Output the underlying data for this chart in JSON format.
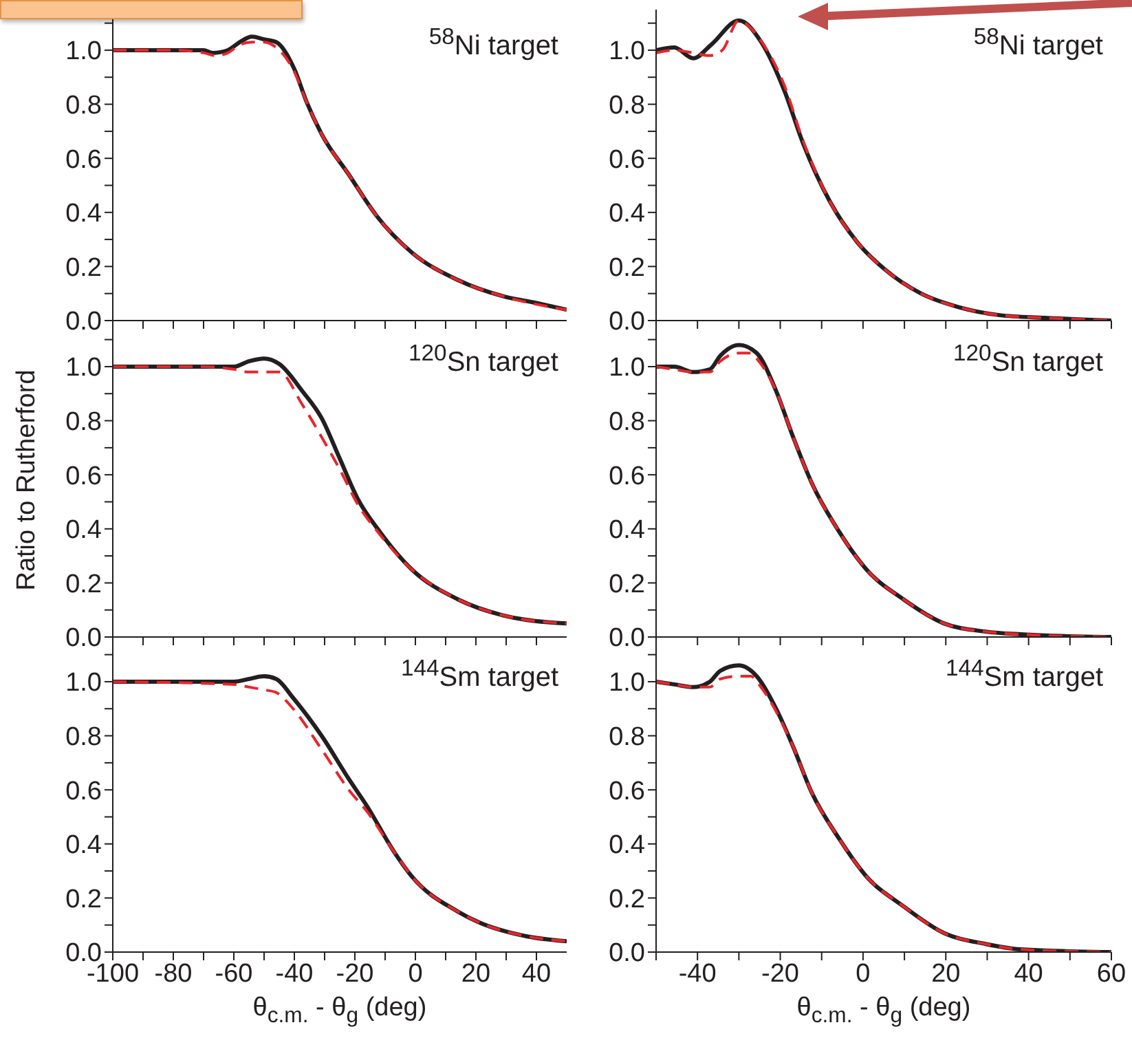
{
  "chart_data": [
    {
      "type": "line",
      "annotations": [
        "$^{58}$Ni target"
      ],
      "xlim": [
        -100,
        50
      ],
      "xticks": [
        -100,
        {
          "value": -90,
          "label": null
        },
        -80,
        {
          "value": -70,
          "label": null
        },
        -60,
        {
          "value": -50,
          "label": null
        },
        -40,
        {
          "value": -30,
          "label": null
        },
        -20,
        {
          "value": -10,
          "label": null
        },
        0,
        {
          "value": 10,
          "label": null
        },
        20,
        {
          "value": 30,
          "label": null
        },
        40
      ],
      "ylim": [
        0,
        1.15
      ],
      "yticks": [
        {
          "value": 0,
          "label": "0.0"
        },
        {
          "value": 0.1,
          "label": null
        },
        {
          "value": 0.2,
          "label": "0.2"
        },
        {
          "value": 0.3,
          "label": null
        },
        {
          "value": 0.4,
          "label": "0.4"
        },
        {
          "value": 0.5,
          "label": null
        },
        {
          "value": 0.6,
          "label": "0.6"
        },
        {
          "value": 0.7,
          "label": null
        },
        {
          "value": 0.8,
          "label": "0.8"
        },
        {
          "value": 0.9,
          "label": null
        },
        {
          "value": 1,
          "label": "1.0"
        },
        {
          "value": 1.1,
          "label": null
        }
      ],
      "tick_labels": "y",
      "series": [
        {
          "color": "#231f20",
          "line_style": "solid",
          "x": [
            -100,
            -80,
            -70,
            -67,
            -62,
            -58,
            -54,
            -50,
            -46,
            -40,
            -36,
            -31,
            -22,
            -13,
            -1,
            14,
            29,
            40,
            50
          ],
          "values": [
            1.0,
            1.0,
            1.0,
            0.99,
            1.0,
            1.03,
            1.05,
            1.04,
            1.03,
            0.93,
            0.81,
            0.69,
            0.54,
            0.39,
            0.25,
            0.15,
            0.09,
            0.065,
            0.04
          ]
        },
        {
          "color": "#e8262b",
          "line_style": "dashed",
          "x": [
            -100,
            -80,
            -70,
            -66,
            -62,
            -58,
            -54,
            -50,
            -46,
            -40,
            -36,
            -31,
            -22,
            -13,
            -1,
            14,
            29,
            40,
            50
          ],
          "values": [
            1.0,
            1.0,
            0.99,
            0.98,
            0.99,
            1.02,
            1.03,
            1.03,
            1.01,
            0.92,
            0.81,
            0.69,
            0.54,
            0.39,
            0.25,
            0.15,
            0.09,
            0.06,
            0.04
          ]
        }
      ]
    },
    {
      "type": "line",
      "annotations": [
        "$^{58}$Ni target"
      ],
      "xlim": [
        -50,
        60
      ],
      "xticks": [
        {
          "value": -50,
          "label": null
        },
        -40,
        {
          "value": -30,
          "label": null
        },
        -20,
        {
          "value": -10,
          "label": null
        },
        0,
        {
          "value": 10,
          "label": null
        },
        20,
        {
          "value": 30,
          "label": null
        },
        40,
        {
          "value": 50,
          "label": null
        },
        60
      ],
      "ylim": [
        0,
        1.15
      ],
      "yticks": [
        {
          "value": 0,
          "label": "0.0"
        },
        {
          "value": 0.1,
          "label": null
        },
        {
          "value": 0.2,
          "label": "0.2"
        },
        {
          "value": 0.3,
          "label": null
        },
        {
          "value": 0.4,
          "label": "0.4"
        },
        {
          "value": 0.5,
          "label": null
        },
        {
          "value": 0.6,
          "label": "0.6"
        },
        {
          "value": 0.7,
          "label": null
        },
        {
          "value": 0.8,
          "label": "0.8"
        },
        {
          "value": 0.9,
          "label": null
        },
        {
          "value": 1,
          "label": "1.0"
        },
        {
          "value": 1.1,
          "label": null
        }
      ],
      "tick_labels": "y",
      "series": [
        {
          "color": "#231f20",
          "line_style": "solid",
          "x": [
            -50,
            -45.6,
            -41,
            -36.7,
            -30,
            -24.6,
            -19,
            -14.6,
            -8,
            -1.4,
            5.2,
            14,
            23,
            33,
            44,
            60
          ],
          "values": [
            1.0,
            1.01,
            0.97,
            1.02,
            1.11,
            1.03,
            0.85,
            0.66,
            0.44,
            0.29,
            0.19,
            0.1,
            0.05,
            0.02,
            0.01,
            0.0
          ]
        },
        {
          "color": "#e8262b",
          "line_style": "dashed",
          "x": [
            -50,
            -45.6,
            -41,
            -37,
            -34,
            -30,
            -27,
            -24,
            -19,
            -14.6,
            -8,
            -1.4,
            5.2,
            14,
            23,
            33,
            44,
            60
          ],
          "values": [
            0.99,
            1.0,
            0.99,
            0.98,
            1.0,
            1.11,
            1.08,
            1.02,
            0.87,
            0.67,
            0.44,
            0.29,
            0.19,
            0.1,
            0.05,
            0.02,
            0.01,
            0.0
          ]
        }
      ]
    },
    {
      "type": "line",
      "ylabel": "Ratio to Rutherford",
      "annotations": [
        "$^{120}$Sn target"
      ],
      "xlim": [
        -100,
        50
      ],
      "xticks": [
        -100,
        {
          "value": -90,
          "label": null
        },
        -80,
        {
          "value": -70,
          "label": null
        },
        -60,
        {
          "value": -50,
          "label": null
        },
        -40,
        {
          "value": -30,
          "label": null
        },
        -20,
        {
          "value": -10,
          "label": null
        },
        0,
        {
          "value": 10,
          "label": null
        },
        20,
        {
          "value": 30,
          "label": null
        },
        40
      ],
      "ylim": [
        0,
        1.15
      ],
      "yticks": [
        {
          "value": 0,
          "label": "0.0"
        },
        {
          "value": 0.1,
          "label": null
        },
        {
          "value": 0.2,
          "label": "0.2"
        },
        {
          "value": 0.3,
          "label": null
        },
        {
          "value": 0.4,
          "label": "0.4"
        },
        {
          "value": 0.5,
          "label": null
        },
        {
          "value": 0.6,
          "label": "0.6"
        },
        {
          "value": 0.7,
          "label": null
        },
        {
          "value": 0.8,
          "label": "0.8"
        },
        {
          "value": 0.9,
          "label": null
        },
        {
          "value": 1,
          "label": "1.0"
        },
        {
          "value": 1.1,
          "label": null
        }
      ],
      "tick_labels": "y",
      "series": [
        {
          "color": "#231f20",
          "line_style": "solid",
          "x": [
            -100,
            -70,
            -60,
            -55,
            -50,
            -45,
            -37.4,
            -31,
            -25,
            -19,
            -11.8,
            -1.2,
            13.9,
            29,
            50
          ],
          "values": [
            1.0,
            1.0,
            1.0,
            1.02,
            1.03,
            1.01,
            0.91,
            0.81,
            0.66,
            0.51,
            0.39,
            0.25,
            0.14,
            0.08,
            0.05
          ]
        },
        {
          "color": "#e8262b",
          "line_style": "dashed",
          "x": [
            -100,
            -70,
            -60,
            -55,
            -50,
            -45,
            -37.4,
            -31,
            -25,
            -19,
            -11.8,
            -1.2,
            13.9,
            29,
            50
          ],
          "values": [
            1.0,
            1.0,
            0.99,
            0.98,
            0.98,
            0.98,
            0.86,
            0.74,
            0.62,
            0.49,
            0.38,
            0.25,
            0.14,
            0.08,
            0.05
          ]
        }
      ]
    },
    {
      "type": "line",
      "annotations": [
        "$^{120}$Sn target"
      ],
      "xlim": [
        -50,
        60
      ],
      "xticks": [
        {
          "value": -50,
          "label": null
        },
        -40,
        {
          "value": -30,
          "label": null
        },
        -20,
        {
          "value": -10,
          "label": null
        },
        0,
        {
          "value": 10,
          "label": null
        },
        20,
        {
          "value": 30,
          "label": null
        },
        40,
        {
          "value": 50,
          "label": null
        },
        60
      ],
      "ylim": [
        0,
        1.15
      ],
      "yticks": [
        {
          "value": 0,
          "label": "0.0"
        },
        {
          "value": 0.1,
          "label": null
        },
        {
          "value": 0.2,
          "label": "0.2"
        },
        {
          "value": 0.3,
          "label": null
        },
        {
          "value": 0.4,
          "label": "0.4"
        },
        {
          "value": 0.5,
          "label": null
        },
        {
          "value": 0.6,
          "label": "0.6"
        },
        {
          "value": 0.7,
          "label": null
        },
        {
          "value": 0.8,
          "label": "0.8"
        },
        {
          "value": 0.9,
          "label": null
        },
        {
          "value": 1,
          "label": "1.0"
        },
        {
          "value": 1.1,
          "label": null
        }
      ],
      "tick_labels": "y",
      "series": [
        {
          "color": "#231f20",
          "line_style": "solid",
          "x": [
            -50,
            -45.6,
            -41,
            -37,
            -34.5,
            -30,
            -25.7,
            -21,
            -16.9,
            -12.4,
            -5.8,
            0.8,
            9.7,
            19.6,
            29.6,
            38,
            60
          ],
          "values": [
            1.0,
            1.0,
            0.98,
            0.99,
            1.04,
            1.08,
            1.05,
            0.91,
            0.74,
            0.57,
            0.39,
            0.25,
            0.14,
            0.05,
            0.02,
            0.01,
            0.0
          ]
        },
        {
          "color": "#e8262b",
          "line_style": "dashed",
          "x": [
            -50,
            -45.6,
            -41,
            -37,
            -34.5,
            -30,
            -27,
            -25.7,
            -21,
            -16.9,
            -12.4,
            -5.8,
            0.8,
            9.7,
            19.6,
            29.6,
            38,
            60
          ],
          "values": [
            1.0,
            0.99,
            0.98,
            0.98,
            1.02,
            1.05,
            1.05,
            1.03,
            0.91,
            0.74,
            0.57,
            0.39,
            0.25,
            0.14,
            0.05,
            0.02,
            0.01,
            0.0
          ]
        }
      ]
    },
    {
      "type": "line",
      "xlabel": "θ$_{c.m.}$ - θ$_{g}$ (deg)",
      "annotations": [
        "$^{144}$Sm target"
      ],
      "xlim": [
        -100,
        50
      ],
      "xticks": [
        -100,
        {
          "value": -90,
          "label": null
        },
        -80,
        {
          "value": -70,
          "label": null
        },
        -60,
        {
          "value": -50,
          "label": null
        },
        -40,
        {
          "value": -30,
          "label": null
        },
        -20,
        {
          "value": -10,
          "label": null
        },
        0,
        {
          "value": 10,
          "label": null
        },
        20,
        {
          "value": 30,
          "label": null
        },
        40
      ],
      "ylim": [
        0,
        1.15
      ],
      "yticks": [
        {
          "value": 0,
          "label": "0.0"
        },
        {
          "value": 0.1,
          "label": null
        },
        {
          "value": 0.2,
          "label": "0.2"
        },
        {
          "value": 0.3,
          "label": null
        },
        {
          "value": 0.4,
          "label": "0.4"
        },
        {
          "value": 0.5,
          "label": null
        },
        {
          "value": 0.6,
          "label": "0.6"
        },
        {
          "value": 0.7,
          "label": null
        },
        {
          "value": 0.8,
          "label": "0.8"
        },
        {
          "value": 0.9,
          "label": null
        },
        {
          "value": 1,
          "label": "1.0"
        },
        {
          "value": 1.1,
          "label": null
        }
      ],
      "series": [
        {
          "color": "#231f20",
          "line_style": "solid",
          "x": [
            -100,
            -60,
            -55,
            -50,
            -46,
            -40.4,
            -31,
            -22,
            -16,
            -7,
            -1.2,
            14,
            21,
            36,
            50
          ],
          "values": [
            1.0,
            1.0,
            1.01,
            1.02,
            1.01,
            0.94,
            0.8,
            0.64,
            0.54,
            0.37,
            0.28,
            0.15,
            0.11,
            0.06,
            0.04
          ]
        },
        {
          "color": "#e8262b",
          "line_style": "dashed",
          "x": [
            -100,
            -60,
            -55,
            -50,
            -46,
            -40.4,
            -31,
            -22,
            -16,
            -7,
            -1.2,
            14,
            21,
            36,
            50
          ],
          "values": [
            1.0,
            0.99,
            0.98,
            0.97,
            0.96,
            0.9,
            0.75,
            0.6,
            0.52,
            0.37,
            0.28,
            0.15,
            0.11,
            0.06,
            0.04
          ]
        }
      ]
    },
    {
      "type": "line",
      "xlabel": "θ$_{c.m.}$ - θ$_{g}$ (deg)",
      "annotations": [
        "$^{144}$Sm target"
      ],
      "xlim": [
        -50,
        60
      ],
      "xticks": [
        {
          "value": -50,
          "label": null
        },
        -40,
        {
          "value": -30,
          "label": null
        },
        -20,
        {
          "value": -10,
          "label": null
        },
        0,
        {
          "value": 10,
          "label": null
        },
        20,
        {
          "value": 30,
          "label": null
        },
        40,
        {
          "value": 50,
          "label": null
        },
        60
      ],
      "ylim": [
        0,
        1.15
      ],
      "yticks": [
        {
          "value": 0,
          "label": "0.0"
        },
        {
          "value": 0.1,
          "label": null
        },
        {
          "value": 0.2,
          "label": "0.2"
        },
        {
          "value": 0.3,
          "label": null
        },
        {
          "value": 0.4,
          "label": "0.4"
        },
        {
          "value": 0.5,
          "label": null
        },
        {
          "value": 0.6,
          "label": "0.6"
        },
        {
          "value": 0.7,
          "label": null
        },
        {
          "value": 0.8,
          "label": "0.8"
        },
        {
          "value": 0.9,
          "label": null
        },
        {
          "value": 1,
          "label": "1.0"
        },
        {
          "value": 1.1,
          "label": null
        }
      ],
      "series": [
        {
          "color": "#231f20",
          "line_style": "solid",
          "x": [
            -50,
            -45.6,
            -41,
            -37,
            -34.5,
            -30,
            -25.7,
            -21,
            -16.9,
            -12.4,
            -5.8,
            0.8,
            9.7,
            19.6,
            29.6,
            38,
            60
          ],
          "values": [
            1.0,
            0.99,
            0.98,
            1.0,
            1.04,
            1.06,
            1.02,
            0.9,
            0.76,
            0.59,
            0.42,
            0.28,
            0.17,
            0.07,
            0.03,
            0.01,
            0.0
          ]
        },
        {
          "color": "#e8262b",
          "line_style": "dashed",
          "x": [
            -50,
            -45.6,
            -41,
            -37,
            -34.5,
            -30,
            -27,
            -25.7,
            -21,
            -16.9,
            -12.4,
            -5.8,
            0.8,
            9.7,
            19.6,
            29.6,
            38,
            60
          ],
          "values": [
            1.0,
            0.99,
            0.98,
            0.98,
            1.01,
            1.02,
            1.02,
            1.0,
            0.89,
            0.76,
            0.59,
            0.42,
            0.28,
            0.17,
            0.07,
            0.03,
            0.01,
            0.0
          ]
        }
      ]
    }
  ]
}
